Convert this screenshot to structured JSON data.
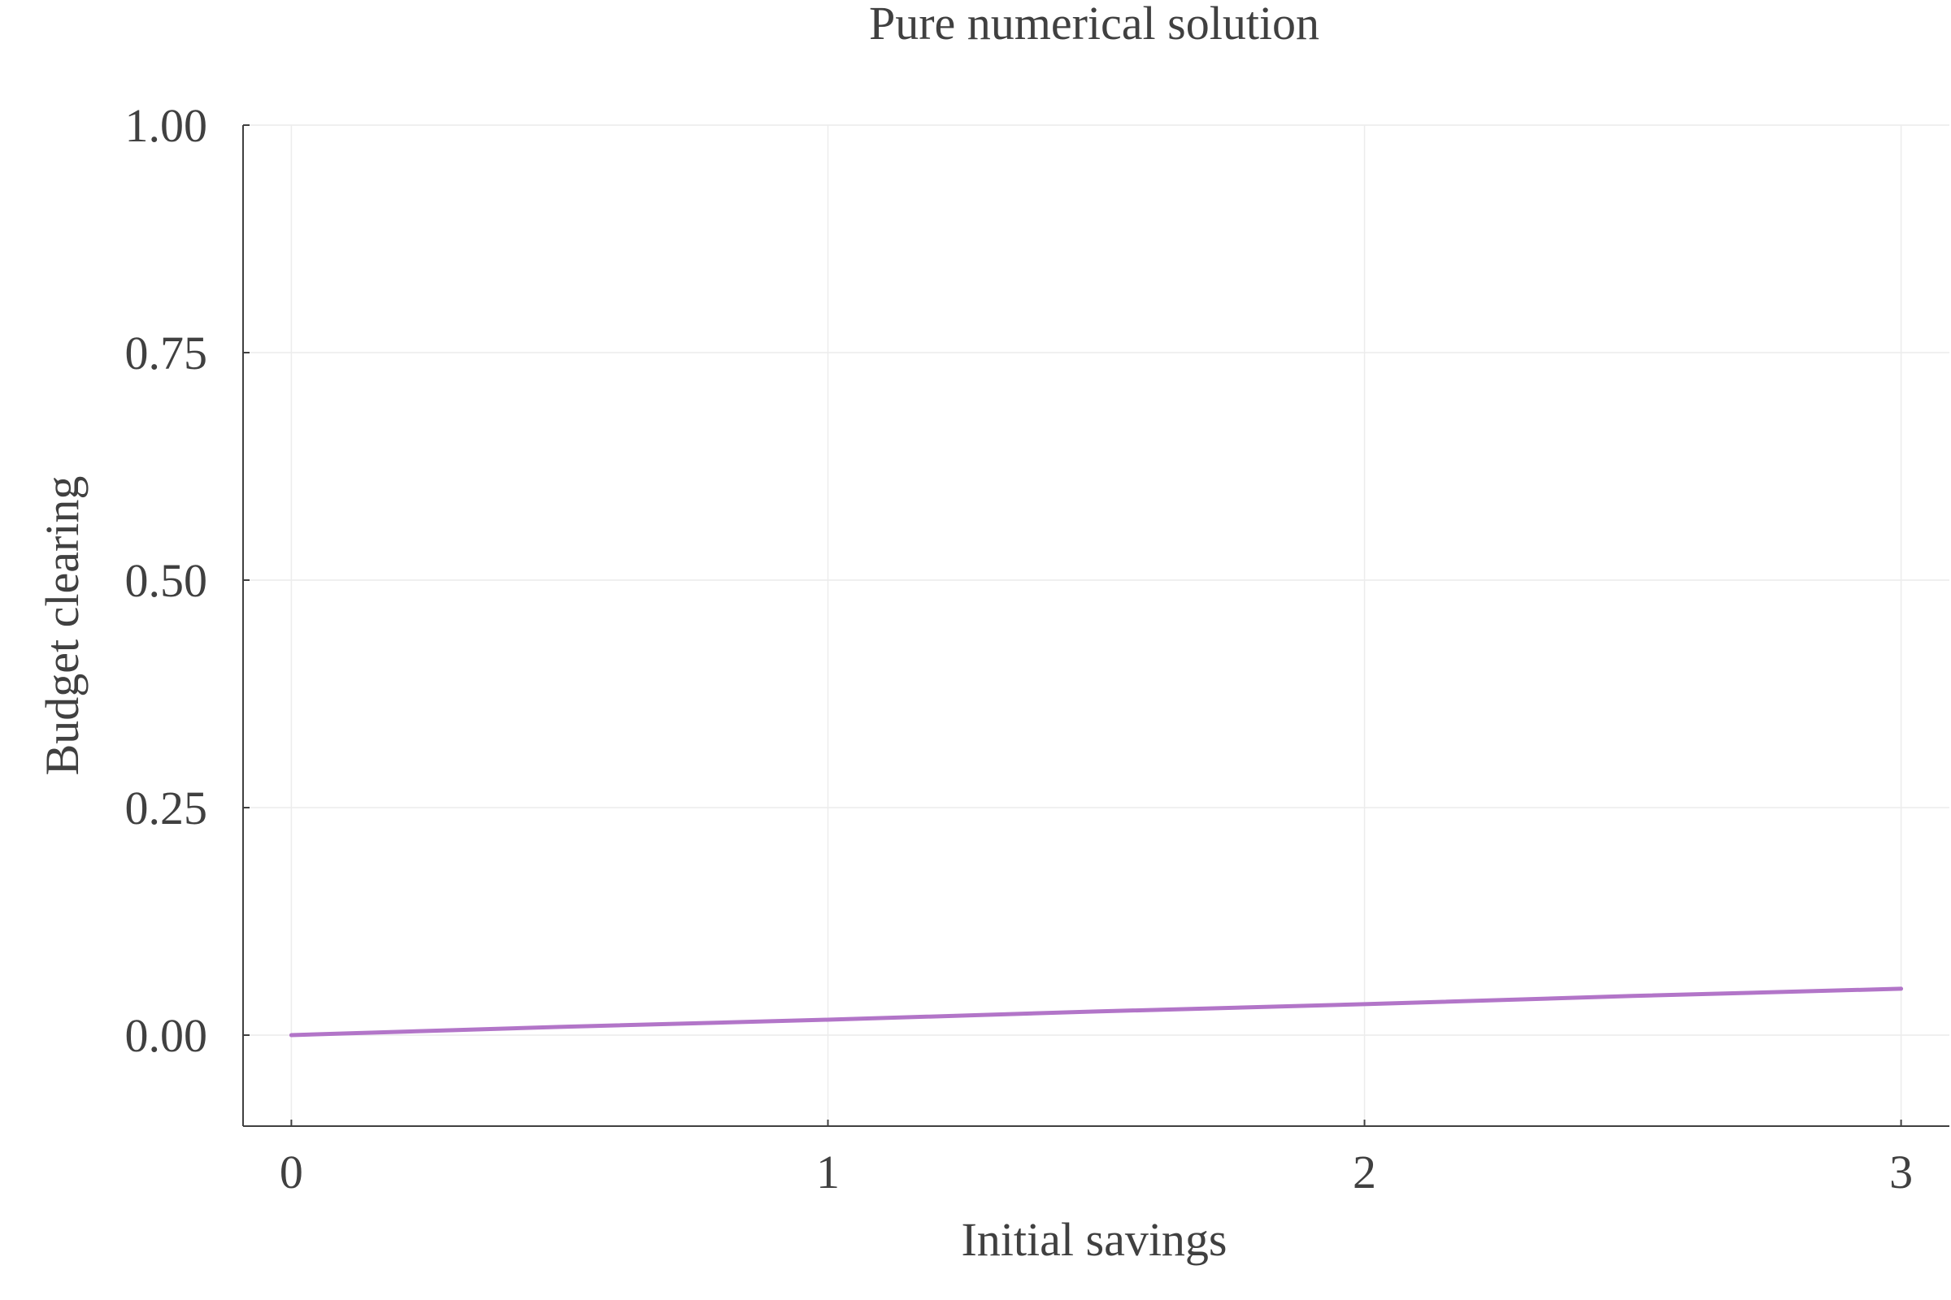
{
  "chart_data": {
    "type": "line",
    "title": "Pure numerical solution",
    "xlabel": "Initial savings",
    "ylabel": "Budget clearing",
    "xlim": [
      -0.09,
      3.09
    ],
    "ylim": [
      -0.1,
      1.0
    ],
    "xticks": [
      0,
      1,
      2,
      3
    ],
    "xtick_labels": [
      "0",
      "1",
      "2",
      "3"
    ],
    "yticks": [
      0,
      0.25,
      0.5,
      0.75,
      1.0
    ],
    "ytick_labels": [
      "0.00",
      "0.25",
      "0.50",
      "0.75",
      "1.00"
    ],
    "grid": true,
    "series": [
      {
        "color": "#b275c8",
        "x": [
          0,
          0.5,
          1,
          1.5,
          2,
          2.5,
          3
        ],
        "y": [
          0,
          0.009,
          0.017,
          0.026,
          0.034,
          0.043,
          0.051
        ]
      }
    ]
  }
}
